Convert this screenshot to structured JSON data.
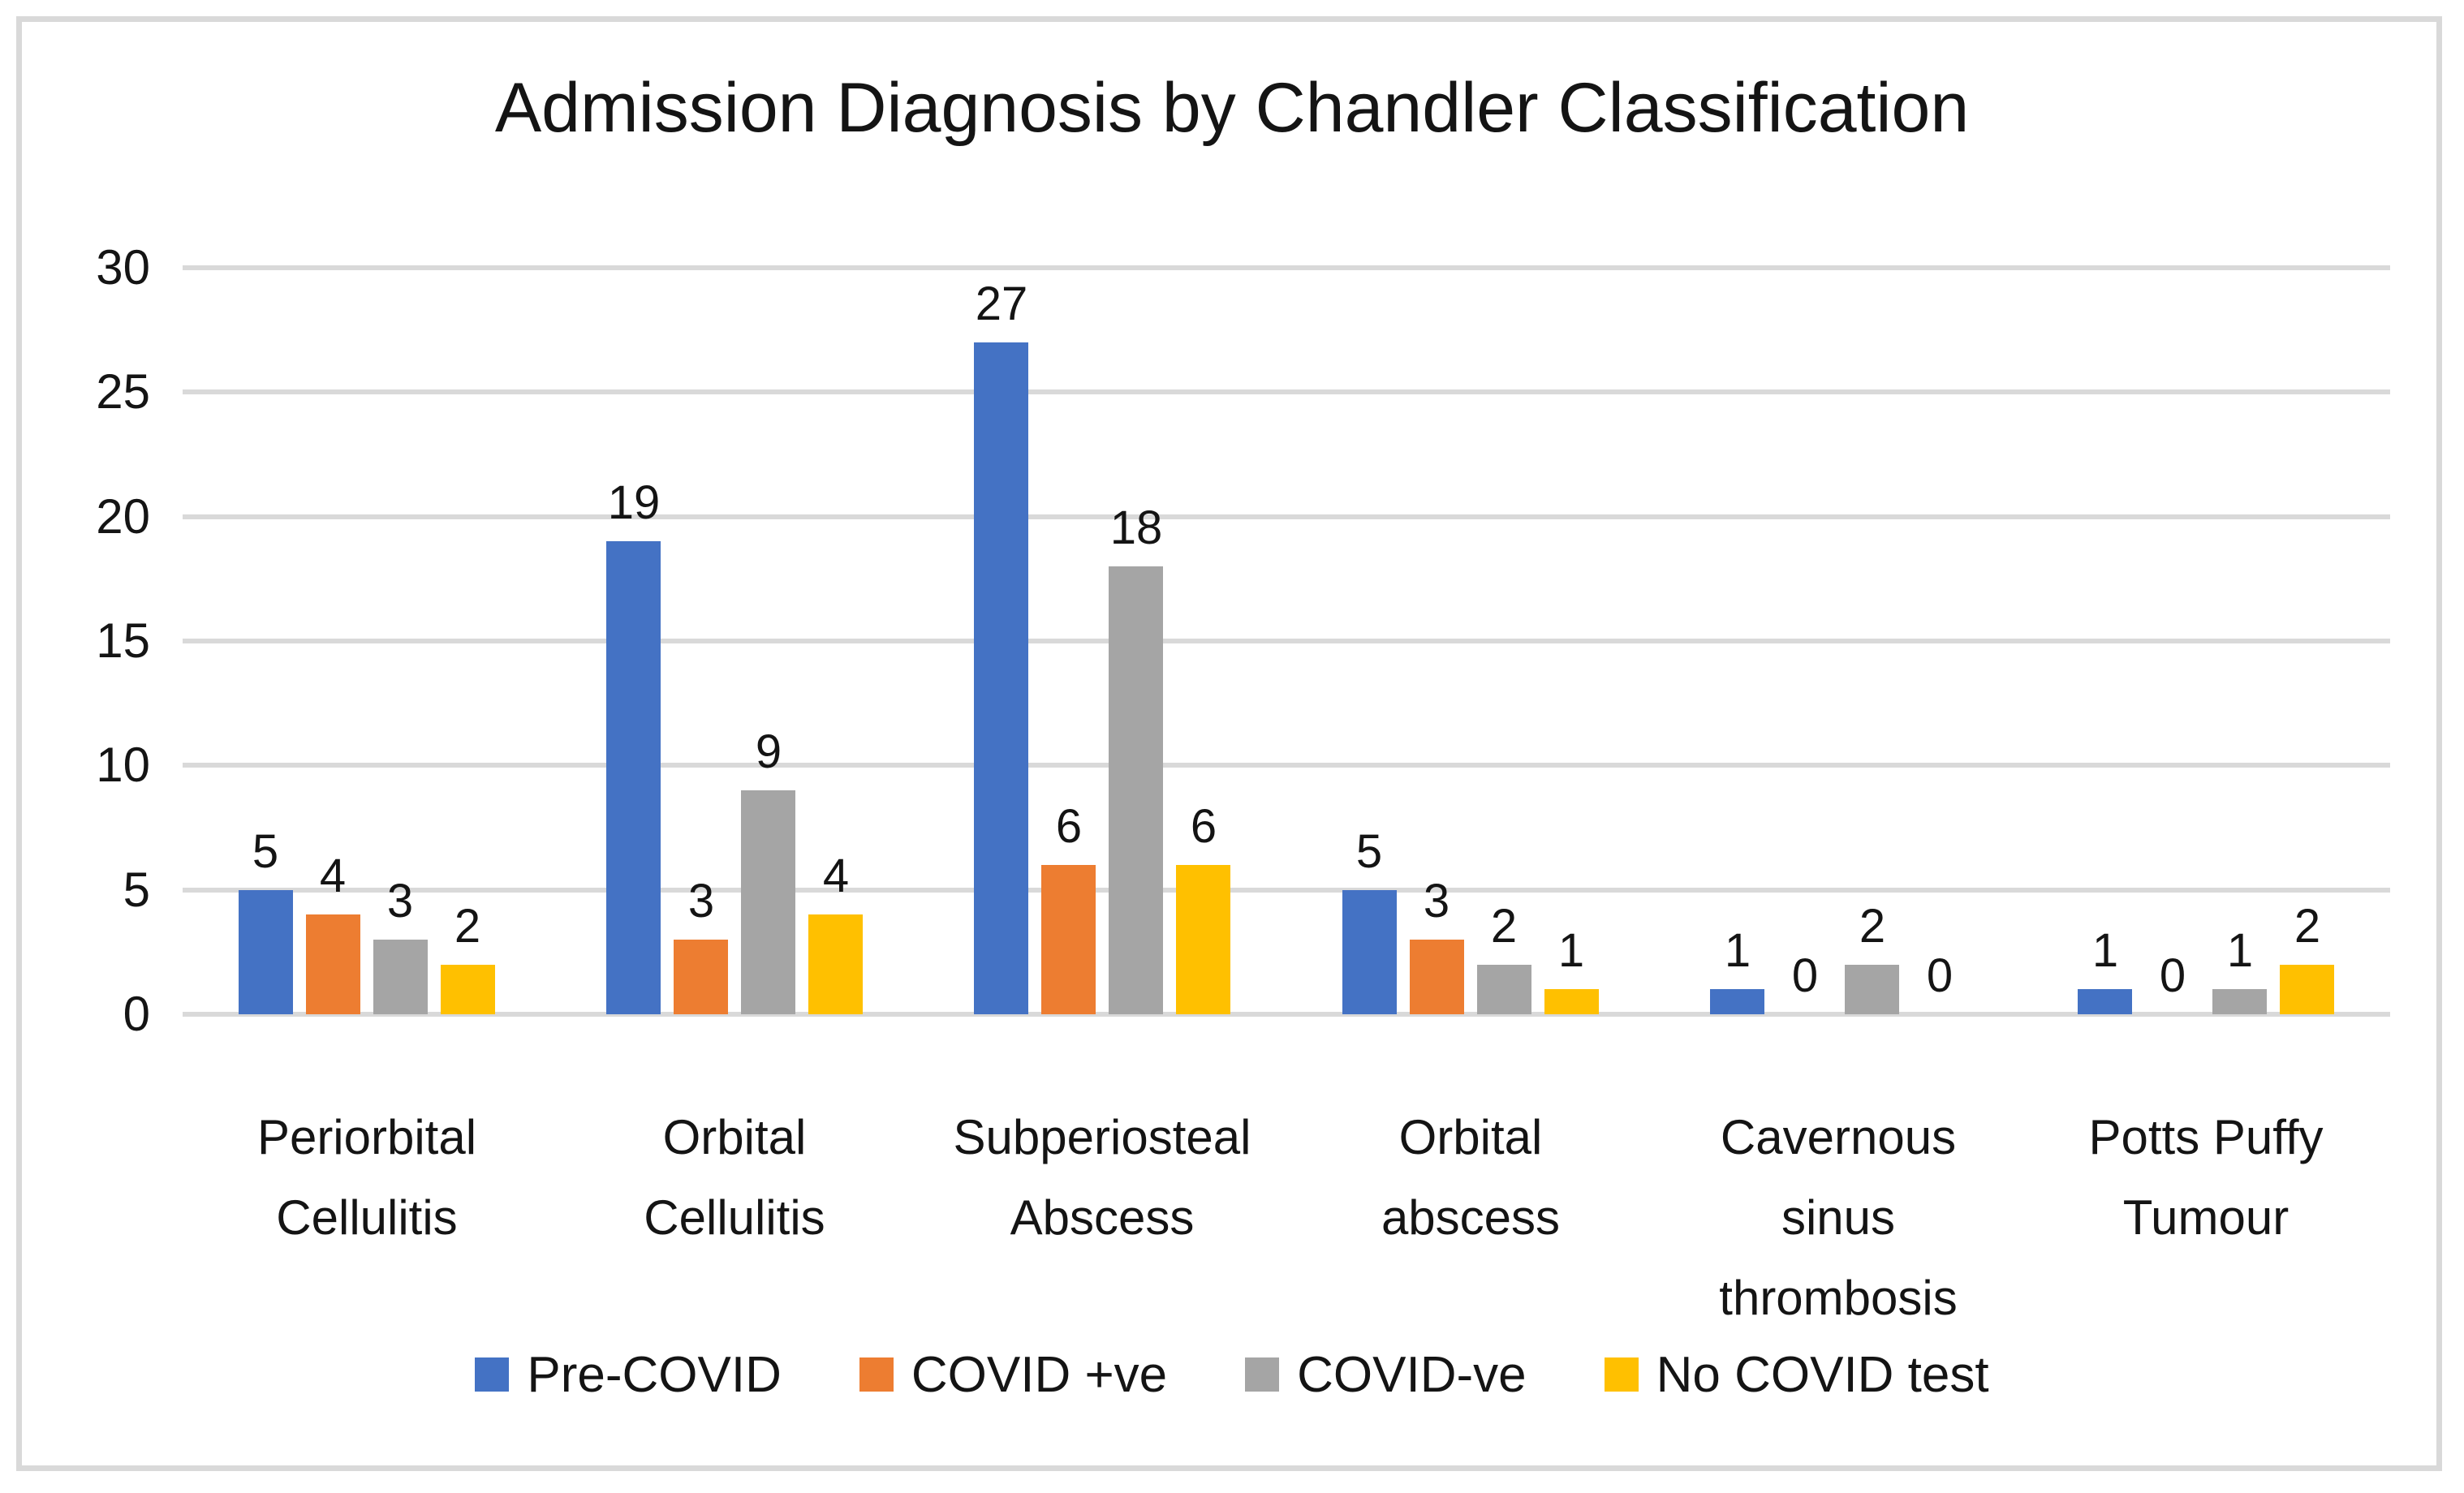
{
  "chart_data": {
    "type": "bar",
    "title": "Admission Diagnosis by Chandler Classification",
    "categories": [
      "Periorbital Cellulitis",
      "Orbital Cellulitis",
      "Subperiosteal Abscess",
      "Orbital abscess",
      "Cavernous sinus thrombosis",
      "Potts Puffy Tumour"
    ],
    "category_label_lines": [
      [
        "Periorbital",
        "Cellulitis"
      ],
      [
        "Orbital",
        "Cellulitis"
      ],
      [
        "Subperiosteal",
        "Abscess"
      ],
      [
        "Orbital",
        "abscess"
      ],
      [
        "Cavernous",
        "sinus",
        "thrombosis"
      ],
      [
        "Potts Puffy",
        "Tumour"
      ]
    ],
    "series": [
      {
        "name": "Pre-COVID",
        "color": "#4472C4",
        "values": [
          5,
          19,
          27,
          5,
          1,
          1
        ]
      },
      {
        "name": "COVID +ve",
        "color": "#ED7D31",
        "values": [
          4,
          3,
          6,
          3,
          0,
          0
        ]
      },
      {
        "name": "COVID-ve",
        "color": "#A5A5A5",
        "values": [
          3,
          9,
          18,
          2,
          2,
          1
        ]
      },
      {
        "name": "No COVID test",
        "color": "#FFC000",
        "values": [
          2,
          4,
          6,
          1,
          0,
          2
        ]
      }
    ],
    "ylim": [
      0,
      30
    ],
    "yticks": [
      0,
      5,
      10,
      15,
      20,
      25,
      30
    ],
    "grid": true,
    "gridline_color": "#D9D9D9",
    "legend_position": "bottom",
    "show_value_labels": true
  }
}
